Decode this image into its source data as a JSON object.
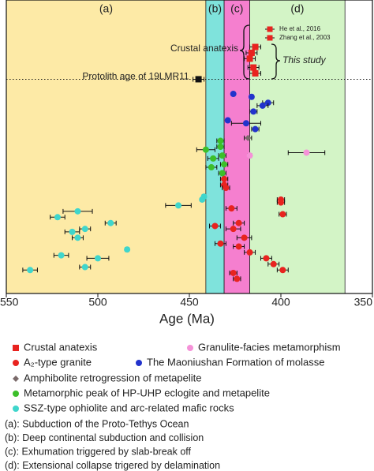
{
  "chart_data": {
    "type": "scatter",
    "x_label": "Age (Ma)",
    "xlim": [
      550,
      350
    ],
    "xticks": [
      550,
      500,
      450,
      400,
      350
    ],
    "ylim": [
      0,
      100
    ],
    "regions": [
      {
        "label": "(a)",
        "range": [
          550,
          441
        ],
        "color": "#fdeaa6"
      },
      {
        "label": "(b)",
        "range": [
          441,
          431
        ],
        "color": "#7fe3dc"
      },
      {
        "label": "(c)",
        "range": [
          431,
          417
        ],
        "color": "#f57fcf"
      },
      {
        "label": "(d)",
        "range": [
          417,
          365
        ],
        "color": "#d3f4c6"
      }
    ],
    "protolith": {
      "label": "Protolith age of 19LMR11",
      "x": 445,
      "y": 27,
      "xerr": 3,
      "color": "#111111"
    },
    "references": [
      "He et al., 2016",
      "Zhang et al., 2003"
    ],
    "annotations": [
      "Crustal anatexis",
      "This study"
    ],
    "series": [
      {
        "name": "Crustal anatexis",
        "color": "#e8231f",
        "marker": "square",
        "x": [
          414,
          416,
          417,
          415,
          414
        ],
        "y": [
          16,
          18,
          20,
          23,
          25
        ],
        "xerr": [
          3,
          3,
          3,
          3,
          3
        ]
      },
      {
        "name": "Granulite-facies metamorphism",
        "color": "#f592d8",
        "marker": "circle",
        "x": [
          417,
          386
        ],
        "y": [
          53,
          52
        ],
        "xerr": [
          1,
          10
        ]
      },
      {
        "name": "A₂-type granite",
        "color": "#e8231f",
        "marker": "circle",
        "x": [
          431,
          431,
          430,
          400,
          400,
          427,
          399,
          423,
          436,
          426,
          420,
          433,
          423,
          417,
          408,
          404,
          399,
          426,
          424
        ],
        "y": [
          61,
          63,
          64,
          68,
          69,
          71,
          73,
          76,
          77,
          78,
          81,
          83,
          84,
          86,
          88,
          90,
          92,
          93,
          95
        ],
        "xerr": [
          2,
          2,
          2,
          2,
          2,
          3,
          2,
          3,
          3,
          4,
          4,
          3,
          3,
          3,
          3,
          3,
          3,
          2,
          2
        ]
      },
      {
        "name": "The Maoniushan Formation of molasse",
        "color": "#2233cc",
        "marker": "circle",
        "x": [
          426,
          416,
          407,
          410,
          415,
          429,
          419,
          414
        ],
        "y": [
          32,
          33,
          35,
          36,
          38,
          41,
          42,
          44
        ],
        "xerr": [
          1,
          1,
          3,
          3,
          2,
          1,
          8,
          2
        ]
      },
      {
        "name": "Amphibolite retrogression of metapelite",
        "color": "#7a6a6a",
        "marker": "diamond",
        "x": [
          418
        ],
        "y": [
          47
        ],
        "xerr": [
          2
        ]
      },
      {
        "name": "Metamorphic peak of HP-UHP eclogite and metapelite",
        "color": "#3cbf2a",
        "marker": "circle",
        "x": [
          433,
          433,
          441,
          432,
          437,
          431,
          438,
          432
        ],
        "y": [
          48,
          50,
          51,
          53,
          54,
          56,
          57,
          59
        ],
        "xerr": [
          2,
          2,
          5,
          2,
          3,
          2,
          3,
          2
        ]
      },
      {
        "name": "SSZ-type ophiolite and arc-related mafic rocks",
        "color": "#3fd6cc",
        "marker": "circle",
        "x": [
          442,
          443,
          456,
          511,
          522,
          493,
          507,
          514,
          511,
          484,
          520,
          500,
          507,
          537
        ],
        "y": [
          67,
          68,
          70,
          72,
          74,
          76,
          78,
          79,
          81,
          85,
          87,
          88,
          91,
          92
        ],
        "xerr": [
          1,
          1,
          7,
          8,
          4,
          3,
          3,
          4,
          3,
          1,
          4,
          6,
          3,
          4
        ]
      }
    ],
    "notes": [
      "(a): Subduction of the Proto-Tethys Ocean",
      "(b): Deep continental subduction and collision",
      "(c): Exhumation triggered by slab-break off",
      "(d): Extensional collapse trigered by delamination"
    ]
  }
}
